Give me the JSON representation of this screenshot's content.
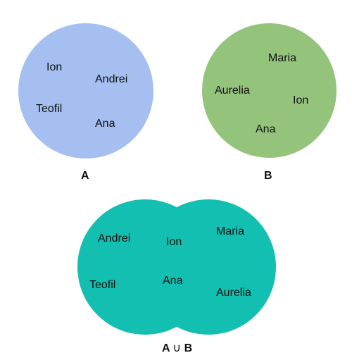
{
  "colors": {
    "set_a": "#a4bff0",
    "set_b": "#94c37b",
    "union": "#12bfb0",
    "text": "#111111"
  },
  "set_a": {
    "label": "A",
    "elements": [
      "Ion",
      "Andrei",
      "Teofil",
      "Ana"
    ]
  },
  "set_b": {
    "label": "B",
    "elements": [
      "Maria",
      "Aurelia",
      "Ion",
      "Ana"
    ]
  },
  "union": {
    "label_left": "A",
    "operator": "∪",
    "label_right": "B",
    "elements": [
      "Andrei",
      "Ion",
      "Maria",
      "Teofil",
      "Ana",
      "Aurelia"
    ]
  }
}
